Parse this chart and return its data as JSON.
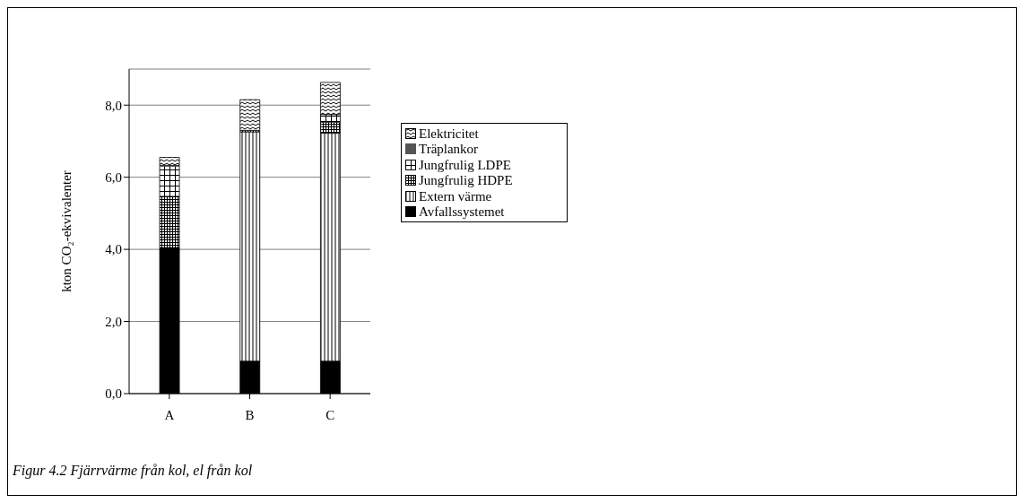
{
  "chart_data": {
    "type": "bar",
    "stacked": true,
    "ylabel": "kton CO₂-ekvivalenter",
    "categories": [
      "A",
      "B",
      "C"
    ],
    "series": [
      {
        "name": "Avfallssystemet",
        "color": "#000000",
        "values": [
          4.05,
          0.9,
          0.9
        ]
      },
      {
        "name": "Extern värme",
        "color": "#000000",
        "values": [
          0,
          6.36,
          6.32
        ]
      },
      {
        "name": "Jungfrulig HDPE",
        "color": "#000000",
        "values": [
          1.42,
          0.04,
          0.31
        ]
      },
      {
        "name": "Jungfrulig LDPE",
        "color": "#000000",
        "values": [
          0.84,
          0,
          0.21
        ]
      },
      {
        "name": "Träplankor",
        "color": "#555555",
        "values": [
          0.02,
          0,
          null
        ]
      },
      {
        "name": "Elektricitet",
        "color": "#000000",
        "values": [
          0.22,
          0.85,
          0.89
        ]
      }
    ],
    "ylim": [
      0,
      9
    ],
    "yticks": [
      {
        "value": 0,
        "label": "0,0"
      },
      {
        "value": 2,
        "label": "2,0"
      },
      {
        "value": 4,
        "label": "4,0"
      },
      {
        "value": 6,
        "label": "6,0"
      },
      {
        "value": 8,
        "label": "8,0"
      }
    ],
    "grid": "y",
    "legend": "right",
    "annotations": [
      "Figur 4.2 Fjärrvärme från kol, el från kol"
    ]
  }
}
